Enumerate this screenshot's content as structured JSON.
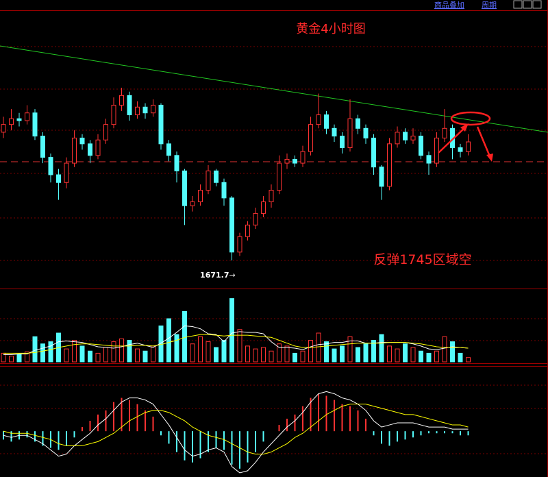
{
  "toolbar": {
    "items": [
      "商品叠加",
      "周期"
    ]
  },
  "chart_data": [
    {
      "type": "candlestick",
      "title": "黄金4小时图",
      "annotations": [
        "反弹1745区域空"
      ],
      "up_color": "#ff3232",
      "down_color": "#54fcfc",
      "ylim": [
        1657.5,
        1806.4
      ],
      "open": [
        1738,
        1742,
        1745,
        1744,
        1748,
        1736,
        1725,
        1716,
        1712,
        1722,
        1735,
        1732,
        1726,
        1734,
        1742,
        1752,
        1757,
        1747,
        1751,
        1748,
        1752,
        1732,
        1726,
        1718,
        1700,
        1702,
        1708,
        1718,
        1712,
        1704,
        1676,
        1684,
        1690,
        1696,
        1702,
        1708,
        1722,
        1724,
        1722,
        1728,
        1742,
        1747,
        1740,
        1736,
        1730,
        1745,
        1740,
        1735,
        1720,
        1710,
        1732,
        1738,
        1734,
        1736,
        1726,
        1722,
        1735,
        1740,
        1730,
        1728
      ],
      "high": [
        1746,
        1750,
        1748,
        1752,
        1750,
        1738,
        1727,
        1719,
        1725,
        1739,
        1737,
        1734,
        1737,
        1745,
        1756,
        1761,
        1759,
        1754,
        1753,
        1755,
        1753,
        1734,
        1728,
        1719,
        1705,
        1711,
        1721,
        1719,
        1714,
        1705,
        1686,
        1692,
        1699,
        1705,
        1711,
        1726,
        1727,
        1726,
        1731,
        1746,
        1758,
        1749,
        1742,
        1738,
        1755,
        1747,
        1742,
        1737,
        1721,
        1735,
        1741,
        1740,
        1740,
        1738,
        1728,
        1738,
        1750,
        1742,
        1732,
        1737
      ],
      "low": [
        1735,
        1739,
        1741,
        1742,
        1734,
        1722,
        1712,
        1703,
        1709,
        1720,
        1729,
        1722,
        1724,
        1732,
        1740,
        1749,
        1744,
        1745,
        1745,
        1746,
        1729,
        1723,
        1712,
        1690,
        1697,
        1700,
        1706,
        1710,
        1700,
        1671.7,
        1674,
        1682,
        1688,
        1694,
        1699,
        1706,
        1719,
        1720,
        1720,
        1726,
        1740,
        1737,
        1733,
        1727,
        1728,
        1737,
        1732,
        1716,
        1703,
        1708,
        1730,
        1732,
        1732,
        1724,
        1716,
        1720,
        1733,
        1724,
        1725,
        1726
      ],
      "close": [
        1742,
        1745,
        1744,
        1748,
        1736,
        1725,
        1716,
        1712,
        1722,
        1735,
        1732,
        1726,
        1734,
        1742,
        1752,
        1757,
        1747,
        1751,
        1748,
        1752,
        1732,
        1726,
        1718,
        1700,
        1702,
        1708,
        1718,
        1712,
        1704,
        1676,
        1684,
        1690,
        1696,
        1702,
        1708,
        1722,
        1724,
        1722,
        1728,
        1742,
        1747,
        1740,
        1736,
        1730,
        1745,
        1740,
        1735,
        1720,
        1710,
        1732,
        1738,
        1734,
        1736,
        1726,
        1722,
        1735,
        1740,
        1730,
        1728,
        1733
      ]
    },
    {
      "type": "volume",
      "ylim": [
        0,
        100
      ],
      "values": [
        12,
        8,
        10,
        14,
        35,
        25,
        28,
        40,
        18,
        30,
        22,
        15,
        12,
        20,
        28,
        32,
        30,
        18,
        15,
        22,
        50,
        60,
        38,
        70,
        25,
        35,
        28,
        20,
        30,
        88,
        45,
        22,
        18,
        20,
        15,
        25,
        22,
        12,
        15,
        30,
        40,
        28,
        18,
        22,
        35,
        20,
        25,
        30,
        38,
        22,
        18,
        25,
        20,
        15,
        12,
        15,
        35,
        28,
        12,
        6
      ],
      "series": [
        {
          "color": "#ffffff",
          "values": [
            10,
            10,
            11,
            11,
            16,
            19,
            22,
            28,
            29,
            28,
            27,
            24,
            21,
            20,
            19,
            21,
            24,
            26,
            23,
            20,
            26,
            33,
            41,
            50,
            49,
            46,
            39,
            38,
            28,
            40,
            42,
            41,
            41,
            39,
            28,
            20,
            20,
            19,
            17,
            21,
            24,
            25,
            27,
            27,
            29,
            29,
            26,
            26,
            27,
            27,
            27,
            27,
            25,
            22,
            18,
            17,
            19,
            21,
            20,
            19
          ]
        },
        {
          "color": "#ffff00",
          "values": [
            12,
            12,
            12,
            12,
            13,
            15,
            17,
            20,
            22,
            24,
            25,
            25,
            24,
            23,
            22,
            22,
            22,
            23,
            23,
            22,
            24,
            27,
            30,
            34,
            36,
            38,
            38,
            37,
            36,
            37,
            37,
            37,
            36,
            35,
            34,
            30,
            26,
            22,
            20,
            20,
            21,
            22,
            23,
            24,
            25,
            26,
            26,
            26,
            26,
            27,
            27,
            27,
            26,
            25,
            23,
            21,
            20,
            20,
            20,
            19
          ]
        }
      ]
    },
    {
      "type": "macd",
      "ylim": [
        -22,
        31
      ],
      "values": [
        -4,
        -5,
        -4,
        -3,
        -5,
        -7,
        -8,
        -9,
        -7,
        -3,
        2,
        5,
        8,
        10,
        14,
        16,
        15,
        13,
        10,
        7,
        -2,
        -6,
        -10,
        -14,
        -15,
        -13,
        -10,
        -8,
        -9,
        -16,
        -18,
        -15,
        -10,
        -5,
        0,
        3,
        6,
        8,
        12,
        16,
        18,
        17,
        15,
        13,
        12,
        10,
        6,
        -2,
        -6,
        -7,
        -5,
        -4,
        -3,
        -2,
        -1,
        -1,
        -1,
        -1,
        -2,
        -2
      ],
      "series": [
        {
          "color": "#ffffff",
          "values": [
            -2,
            -3,
            -2,
            -2,
            -4,
            -6,
            -9,
            -12,
            -11,
            -7,
            -4,
            -1,
            3,
            6,
            10,
            14,
            16,
            16,
            15,
            13,
            8,
            3,
            -3,
            -9,
            -12,
            -11,
            -9,
            -8,
            -10,
            -17,
            -20,
            -19,
            -15,
            -10,
            -6,
            -2,
            2,
            5,
            9,
            14,
            18,
            19,
            18,
            16,
            15,
            13,
            10,
            5,
            2,
            3,
            4,
            4,
            4,
            3,
            2,
            2,
            2,
            1,
            1,
            1
          ]
        },
        {
          "color": "#ffff00",
          "values": [
            0,
            -1,
            -1,
            -1,
            -2,
            -3,
            -4,
            -6,
            -7,
            -7,
            -7,
            -6,
            -5,
            -3,
            -1,
            2,
            5,
            7,
            9,
            10,
            10,
            9,
            7,
            5,
            2,
            0,
            -2,
            -3,
            -4,
            -6,
            -8,
            -10,
            -11,
            -11,
            -10,
            -8,
            -6,
            -3,
            -1,
            2,
            5,
            8,
            10,
            12,
            13,
            13,
            13,
            12,
            11,
            10,
            9,
            8,
            8,
            7,
            6,
            5,
            4,
            3,
            3,
            2
          ]
        }
      ]
    }
  ]
}
